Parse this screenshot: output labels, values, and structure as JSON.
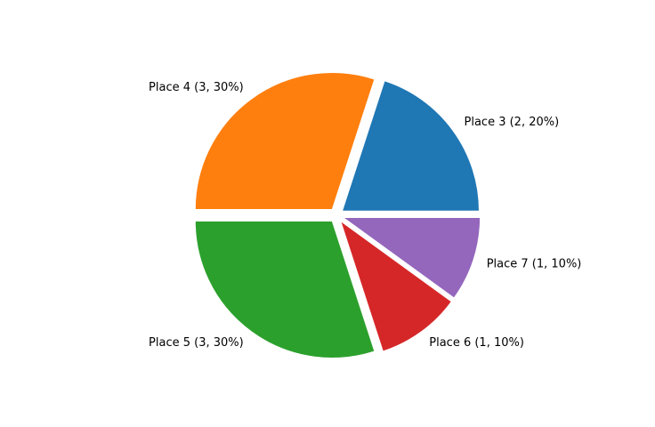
{
  "chart_data": {
    "type": "pie",
    "title": "",
    "start_angle_deg": 0,
    "direction": "counterclockwise",
    "slices": [
      {
        "label": "Place 3 (2, 20%)",
        "value": 2,
        "percent": 20,
        "color": "#1f77b4"
      },
      {
        "label": "Place 4 (3, 30%)",
        "value": 3,
        "percent": 30,
        "color": "#ff7f0e"
      },
      {
        "label": "Place 5 (3, 30%)",
        "value": 3,
        "percent": 30,
        "color": "#2ca02c"
      },
      {
        "label": "Place 6 (1, 10%)",
        "value": 1,
        "percent": 10,
        "color": "#d62728"
      },
      {
        "label": "Place 7 (1, 10%)",
        "value": 1,
        "percent": 10,
        "color": "#9467bd"
      }
    ],
    "wedge_edge_color": "#ffffff",
    "legend": "none",
    "grid": false
  }
}
